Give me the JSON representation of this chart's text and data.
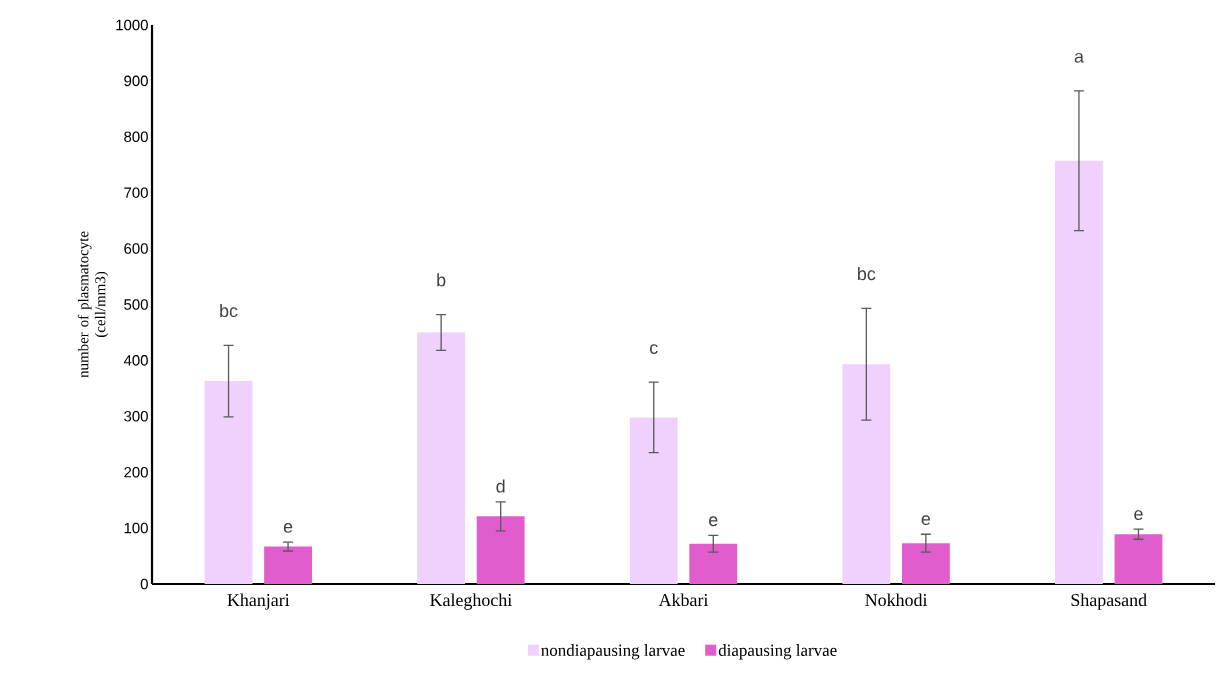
{
  "chart_data": {
    "type": "bar",
    "ylabel": "number of plasmatocyte (cell/mm3)",
    "categories": [
      "Khanjari",
      "Kaleghochi",
      "Akbari",
      "Nokhodi",
      "Shapasand"
    ],
    "series": [
      {
        "name": "nondiapausing larvae",
        "color": "#f0d0fc",
        "values": [
          363,
          450,
          298,
          393,
          757
        ],
        "errors": [
          64,
          32,
          63,
          100,
          125
        ]
      },
      {
        "name": "diapausing larvae",
        "color": "#e15ccc",
        "values": [
          67,
          121,
          72,
          73,
          89
        ],
        "errors": [
          8,
          26,
          15,
          16,
          9
        ]
      }
    ],
    "annotations": [
      "bc",
      "e",
      "b",
      "d",
      "c",
      "e",
      "bc",
      "e",
      "a",
      "e"
    ],
    "ylim": [
      0,
      1000
    ],
    "yticks": [
      0,
      100,
      200,
      300,
      400,
      500,
      600,
      700,
      800,
      900,
      1000
    ],
    "legend": "bottom"
  }
}
